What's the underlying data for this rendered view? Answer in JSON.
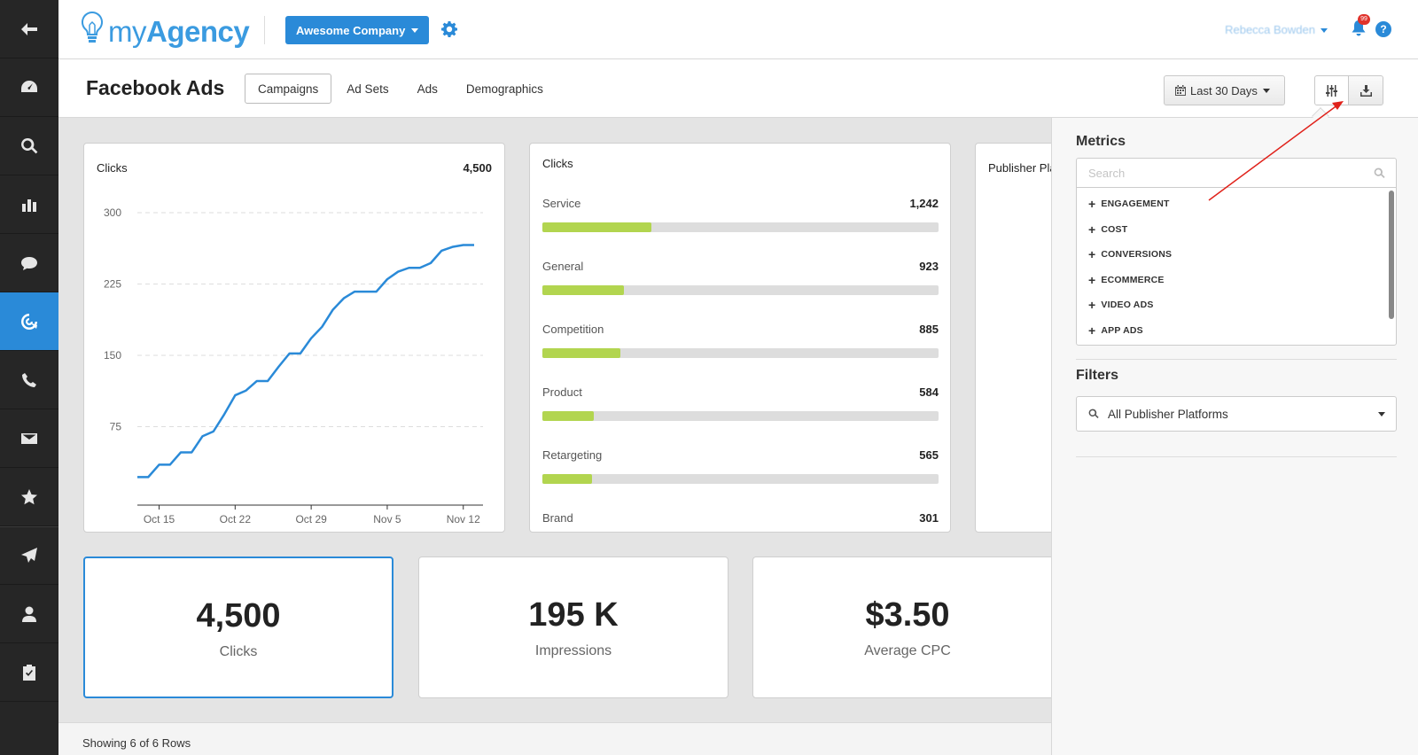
{
  "brand": {
    "name_prefix": "my",
    "name_suffix": "Agency",
    "accent": "#2a8ad8"
  },
  "header": {
    "company": "Awesome Company",
    "user": "Rebecca Bowden",
    "notification_count": "99"
  },
  "page": {
    "title": "Facebook Ads",
    "tabs": [
      {
        "label": "Campaigns",
        "active": true
      },
      {
        "label": "Ad Sets",
        "active": false
      },
      {
        "label": "Ads",
        "active": false
      },
      {
        "label": "Demographics",
        "active": false
      }
    ],
    "date_range": "Last 30 Days"
  },
  "chart_data": [
    {
      "type": "line",
      "title": "Clicks",
      "total": "4,500",
      "color": "#2a8ad8",
      "x_ticks": [
        "Oct 15",
        "Oct 22",
        "Oct 29",
        "Nov 5",
        "Nov 12"
      ],
      "y_ticks": [
        "75",
        "150",
        "225",
        "300"
      ],
      "ylim": [
        0,
        300
      ],
      "x": [
        "Oct 13",
        "Oct 14",
        "Oct 15",
        "Oct 16",
        "Oct 17",
        "Oct 18",
        "Oct 19",
        "Oct 20",
        "Oct 21",
        "Oct 22",
        "Oct 23",
        "Oct 24",
        "Oct 25",
        "Oct 26",
        "Oct 27",
        "Oct 28",
        "Oct 29",
        "Oct 30",
        "Oct 31",
        "Nov 1",
        "Nov 2",
        "Nov 3",
        "Nov 4",
        "Nov 5",
        "Nov 6",
        "Nov 7",
        "Nov 8",
        "Nov 9",
        "Nov 10",
        "Nov 11",
        "Nov 12",
        "Nov 13"
      ],
      "values": [
        22,
        22,
        35,
        35,
        48,
        48,
        65,
        70,
        88,
        108,
        113,
        123,
        123,
        138,
        152,
        152,
        168,
        180,
        198,
        210,
        217,
        217,
        217,
        230,
        238,
        242,
        242,
        247,
        260,
        264,
        266,
        266
      ]
    },
    {
      "type": "bar",
      "title": "Clicks",
      "color": "#b2d54f",
      "categories": [
        "Service",
        "General",
        "Competition",
        "Product",
        "Retargeting",
        "Brand"
      ],
      "values": [
        1242,
        923,
        885,
        584,
        565,
        301
      ],
      "labels": [
        "1,242",
        "923",
        "885",
        "584",
        "565",
        "301"
      ],
      "max": 4500
    },
    {
      "type": "pie",
      "title": "Publisher Platforms",
      "colors": [
        "#8fcdf7",
        "#b2d54f"
      ]
    }
  ],
  "stats": [
    {
      "value": "4,500",
      "label": "Clicks",
      "active": true
    },
    {
      "value": "195 K",
      "label": "Impressions",
      "active": false
    },
    {
      "value": "$3.50",
      "label": "Average CPC",
      "active": false
    }
  ],
  "footer": {
    "rows_text": "Showing 6 of 6 Rows"
  },
  "panel": {
    "metrics_title": "Metrics",
    "search_placeholder": "Search",
    "metric_groups": [
      "ENGAGEMENT",
      "COST",
      "CONVERSIONS",
      "ECOMMERCE",
      "VIDEO ADS",
      "APP ADS"
    ],
    "filters_title": "Filters",
    "filter_value": "All Publisher Platforms"
  },
  "rail_icons": [
    "back-arrow-icon",
    "dashboard-icon",
    "search-icon",
    "reports-icon",
    "chat-icon",
    "ppc-target-icon",
    "phone-icon",
    "email-icon",
    "star-icon",
    "send-icon",
    "user-icon",
    "clipboard-icon"
  ]
}
